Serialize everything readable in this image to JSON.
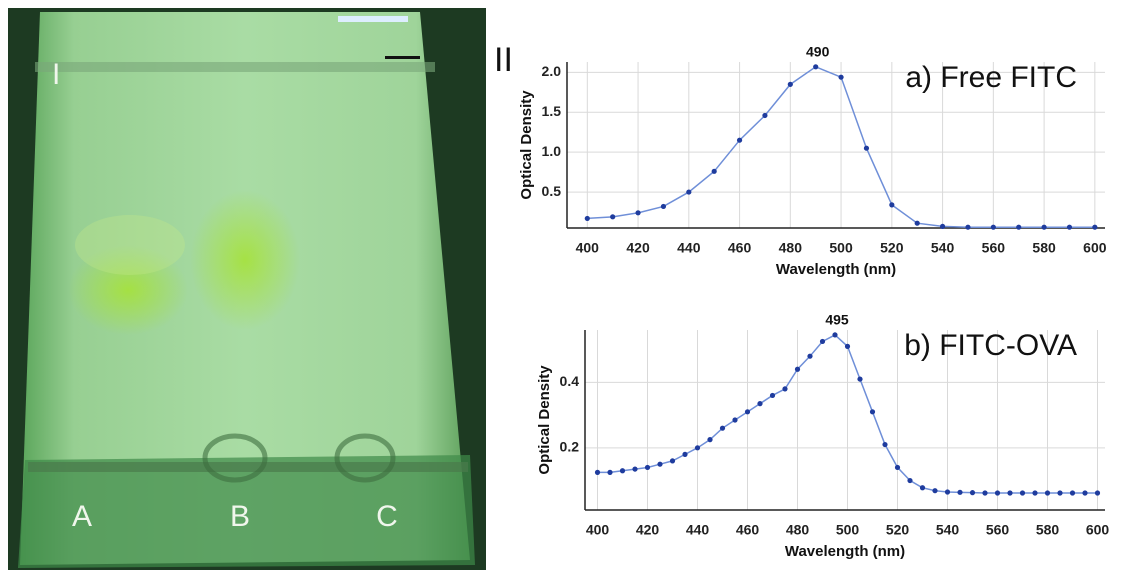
{
  "figure": {
    "panel_labels": [
      "I",
      "II"
    ],
    "photo": {
      "lane_labels": [
        "A",
        "B",
        "C"
      ]
    }
  },
  "chart_data": [
    {
      "type": "line",
      "title": "a) Free FITC",
      "peak_label": "490",
      "x_label": "Wavelength (nm)",
      "y_label": "Optical Density",
      "x": [
        400,
        410,
        420,
        430,
        440,
        450,
        460,
        470,
        480,
        490,
        500,
        510,
        520,
        530,
        540,
        550,
        560,
        570,
        580,
        590,
        600
      ],
      "series": [
        {
          "color": "#1f3c9e",
          "line_color": "#6f8fd8",
          "values": [
            0.17,
            0.19,
            0.24,
            0.32,
            0.5,
            0.76,
            1.15,
            1.46,
            1.85,
            2.07,
            1.94,
            1.05,
            0.34,
            0.11,
            0.07,
            0.06,
            0.06,
            0.06,
            0.06,
            0.06,
            0.06
          ]
        }
      ],
      "xlim": [
        392,
        604
      ],
      "xticks": [
        400,
        420,
        440,
        460,
        480,
        500,
        520,
        540,
        560,
        580,
        600
      ],
      "ylim": [
        0.05,
        2.13
      ],
      "yticks": [
        0.5,
        {
          "value": 1,
          "label": "1.0"
        },
        1.5,
        {
          "value": 2,
          "label": "2.0"
        }
      ],
      "grid": true
    },
    {
      "type": "line",
      "title": "b) FITC-OVA",
      "peak_label": "495",
      "x_label": "Wavelength (nm)",
      "y_label": "Optical Density",
      "x": [
        400,
        405,
        410,
        415,
        420,
        425,
        430,
        435,
        440,
        445,
        450,
        455,
        460,
        465,
        470,
        475,
        480,
        485,
        490,
        495,
        500,
        505,
        510,
        515,
        520,
        525,
        530,
        535,
        540,
        545,
        550,
        555,
        560,
        565,
        570,
        575,
        580,
        585,
        590,
        595,
        600
      ],
      "series": [
        {
          "color": "#1f3c9e",
          "line_color": "#6f8fd8",
          "values": [
            0.125,
            0.125,
            0.13,
            0.135,
            0.14,
            0.15,
            0.16,
            0.18,
            0.2,
            0.225,
            0.26,
            0.285,
            0.31,
            0.335,
            0.36,
            0.38,
            0.44,
            0.48,
            0.525,
            0.545,
            0.51,
            0.41,
            0.31,
            0.21,
            0.14,
            0.1,
            0.078,
            0.069,
            0.065,
            0.064,
            0.063,
            0.062,
            0.062,
            0.062,
            0.062,
            0.062,
            0.062,
            0.062,
            0.062,
            0.062,
            0.062
          ]
        }
      ],
      "xlim": [
        395,
        603
      ],
      "xticks": [
        400,
        420,
        440,
        460,
        480,
        500,
        520,
        540,
        560,
        580,
        600
      ],
      "ylim": [
        0.01,
        0.56
      ],
      "yticks": [
        0.2,
        0.4
      ],
      "grid": true
    }
  ]
}
